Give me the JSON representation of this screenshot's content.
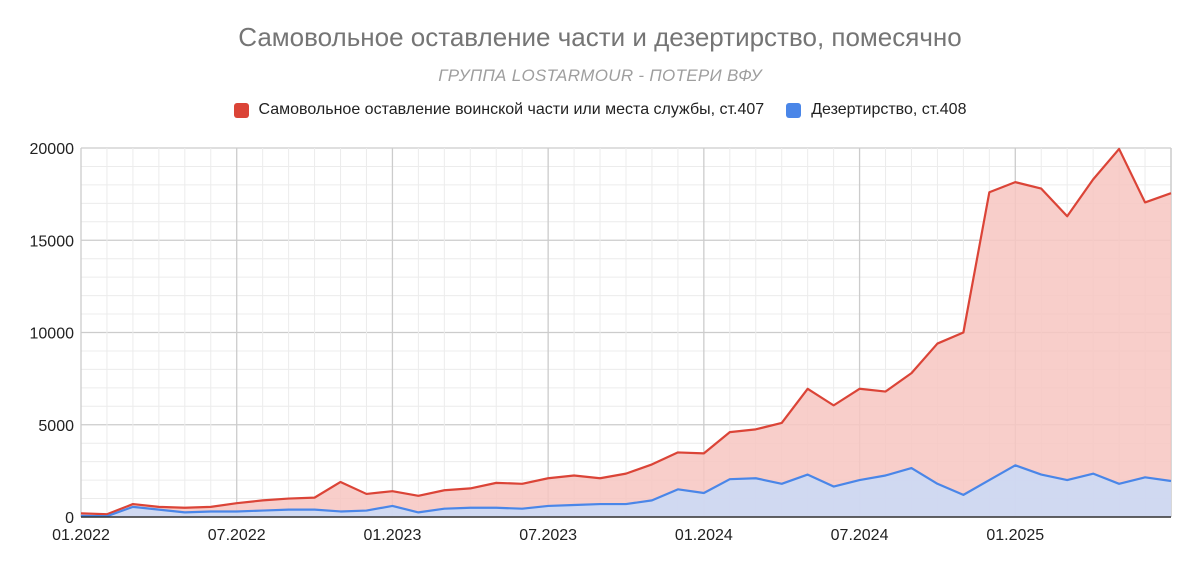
{
  "chart_data": {
    "type": "area",
    "title": "Самовольное оставление части и дезертирство, помесячно",
    "subtitle": "ГРУППА LOSTARMOUR - ПОТЕРИ ВФУ",
    "legend_position": "top",
    "grid": true,
    "stacked": false,
    "ylim": [
      0,
      20000
    ],
    "y_ticks": [
      "0",
      "5000",
      "10000",
      "15000",
      "20000"
    ],
    "x_ticks": [
      "01.2022",
      "07.2022",
      "01.2023",
      "07.2023",
      "01.2024",
      "07.2024",
      "01.2025"
    ],
    "x": [
      "01.2022",
      "02.2022",
      "03.2022",
      "04.2022",
      "05.2022",
      "06.2022",
      "07.2022",
      "08.2022",
      "09.2022",
      "10.2022",
      "11.2022",
      "12.2022",
      "01.2023",
      "02.2023",
      "03.2023",
      "04.2023",
      "05.2023",
      "06.2023",
      "07.2023",
      "08.2023",
      "09.2023",
      "10.2023",
      "11.2023",
      "12.2023",
      "01.2024",
      "02.2024",
      "03.2024",
      "04.2024",
      "05.2024",
      "06.2024",
      "07.2024",
      "08.2024",
      "09.2024",
      "10.2024",
      "11.2024",
      "12.2024",
      "01.2025",
      "02.2025",
      "03.2025",
      "04.2025",
      "05.2025",
      "06.2025",
      "07.2025"
    ],
    "series": [
      {
        "name": "Самовольное оставление воинской части или места службы, ст.407",
        "color": "#db4437",
        "fill": "#f7c6c1",
        "values": [
          200,
          150,
          700,
          550,
          500,
          550,
          750,
          900,
          1000,
          1050,
          1900,
          1250,
          1400,
          1150,
          1450,
          1550,
          1850,
          1800,
          2100,
          2250,
          2100,
          2350,
          2850,
          3500,
          3450,
          4600,
          4750,
          5100,
          6950,
          6050,
          6950,
          6800,
          7800,
          9400,
          10000,
          17600,
          18150,
          17800,
          16300,
          18300,
          19950,
          17050,
          17550
        ]
      },
      {
        "name": "Дезертирство, ст.408",
        "color": "#4a86e8",
        "fill": "#c9daf8",
        "values": [
          60,
          40,
          550,
          400,
          250,
          300,
          300,
          350,
          400,
          400,
          300,
          350,
          600,
          250,
          450,
          500,
          500,
          450,
          600,
          650,
          700,
          700,
          900,
          1500,
          1300,
          2050,
          2100,
          1800,
          2300,
          1650,
          2000,
          2250,
          2650,
          1800,
          1200,
          2000,
          2800,
          2300,
          2000,
          2350,
          1800,
          2150,
          1950
        ]
      }
    ]
  }
}
